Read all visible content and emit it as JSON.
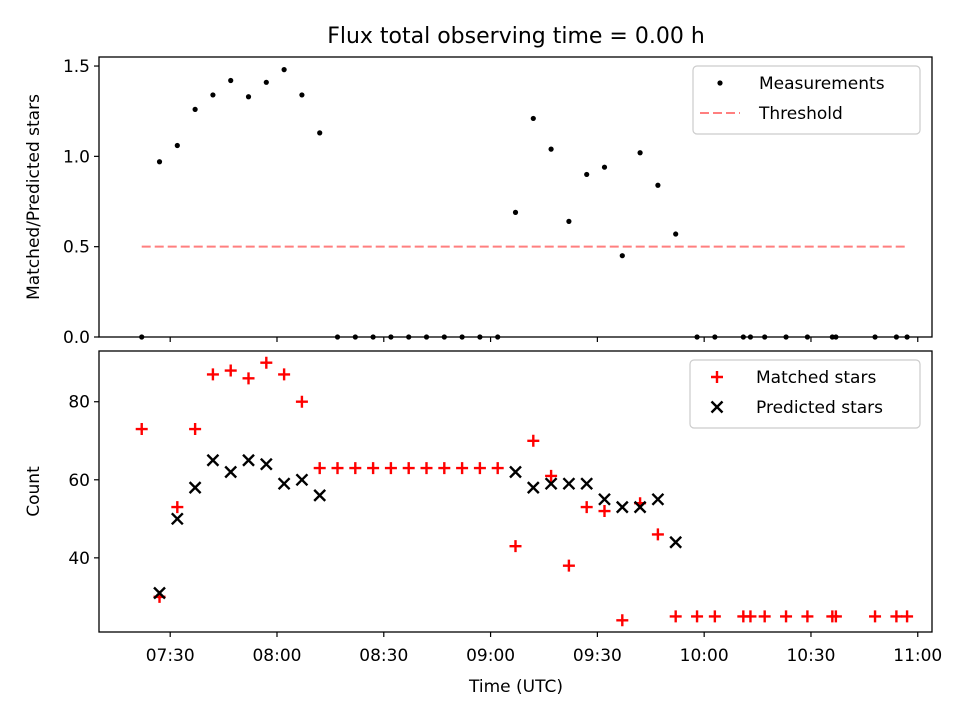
{
  "title": "Flux total observing time = 0.00 h",
  "xlabel": "Time (UTC)",
  "colors": {
    "measurement": "#000000",
    "threshold": "#ff7f7f",
    "matched": "#ff0000",
    "predicted": "#000000"
  },
  "chart_data": [
    {
      "type": "scatter",
      "ylabel": "Matched/Predicted stars",
      "xlim": [
        "07:10",
        "11:04"
      ],
      "ylim": [
        0,
        1.55
      ],
      "yticks": [
        0.0,
        0.5,
        1.0,
        1.5
      ],
      "ytick_labels": [
        "0.0",
        "0.5",
        "1.0",
        "1.5"
      ],
      "legend_position": "top-right",
      "series": [
        {
          "name": "Measurements",
          "marker": "dot",
          "x": [
            "07:22",
            "07:27",
            "07:32",
            "07:37",
            "07:42",
            "07:47",
            "07:52",
            "07:57",
            "08:02",
            "08:07",
            "08:12",
            "08:17",
            "08:22",
            "08:27",
            "08:32",
            "08:37",
            "08:42",
            "08:47",
            "08:52",
            "08:57",
            "09:02",
            "09:07",
            "09:12",
            "09:17",
            "09:22",
            "09:27",
            "09:32",
            "09:37",
            "09:42",
            "09:47",
            "09:52",
            "09:58",
            "10:03",
            "10:11",
            "10:13",
            "10:17",
            "10:23",
            "10:29",
            "10:36",
            "10:37",
            "10:48",
            "10:54",
            "10:57"
          ],
          "y": [
            0.0,
            0.97,
            1.06,
            1.26,
            1.34,
            1.42,
            1.33,
            1.41,
            1.48,
            1.34,
            1.13,
            0.0,
            0.0,
            0.0,
            0.0,
            0.0,
            0.0,
            0.0,
            0.0,
            0.0,
            0.0,
            0.69,
            1.21,
            1.04,
            0.64,
            0.9,
            0.94,
            0.45,
            1.02,
            0.84,
            0.57,
            0.0,
            0.0,
            0.0,
            0.0,
            0.0,
            0.0,
            0.0,
            0.0,
            0.0,
            0.0,
            0.0,
            0.0
          ]
        },
        {
          "name": "Threshold",
          "style": "dashed",
          "x": [
            "07:22",
            "10:57"
          ],
          "y": [
            0.5,
            0.5
          ]
        }
      ]
    },
    {
      "type": "scatter",
      "ylabel": "Count",
      "xlim": [
        "07:10",
        "11:04"
      ],
      "ylim": [
        21,
        93
      ],
      "yticks": [
        40,
        60,
        80
      ],
      "ytick_labels": [
        "40",
        "60",
        "80"
      ],
      "xtick_labels": [
        "07:30",
        "08:00",
        "08:30",
        "09:00",
        "09:30",
        "10:00",
        "10:30",
        "11:00"
      ],
      "legend_position": "top-right",
      "series": [
        {
          "name": "Matched stars",
          "marker": "plus",
          "x": [
            "07:22",
            "07:27",
            "07:32",
            "07:37",
            "07:42",
            "07:47",
            "07:52",
            "07:57",
            "08:02",
            "08:07",
            "08:12",
            "08:17",
            "08:22",
            "08:27",
            "08:32",
            "08:37",
            "08:42",
            "08:47",
            "08:52",
            "08:57",
            "09:02",
            "09:07",
            "09:12",
            "09:17",
            "09:22",
            "09:27",
            "09:32",
            "09:37",
            "09:42",
            "09:47",
            "09:52",
            "09:58",
            "10:03",
            "10:11",
            "10:13",
            "10:17",
            "10:23",
            "10:29",
            "10:36",
            "10:37",
            "10:48",
            "10:54",
            "10:57"
          ],
          "y": [
            73,
            30,
            53,
            73,
            87,
            88,
            86,
            90,
            87,
            80,
            63,
            63,
            63,
            63,
            63,
            63,
            63,
            63,
            63,
            63,
            63,
            43,
            70,
            61,
            38,
            53,
            52,
            24,
            54,
            46,
            25,
            25,
            25,
            25,
            25,
            25,
            25,
            25,
            25,
            25,
            25,
            25,
            25
          ]
        },
        {
          "name": "Predicted stars",
          "marker": "x",
          "x": [
            "07:27",
            "07:32",
            "07:37",
            "07:42",
            "07:47",
            "07:52",
            "07:57",
            "08:02",
            "08:07",
            "08:12",
            "09:07",
            "09:12",
            "09:17",
            "09:22",
            "09:27",
            "09:32",
            "09:37",
            "09:42",
            "09:47",
            "09:52"
          ],
          "y": [
            31,
            50,
            58,
            65,
            62,
            65,
            64,
            59,
            60,
            56,
            62,
            58,
            59,
            59,
            59,
            55,
            53,
            53,
            55,
            44
          ]
        }
      ]
    }
  ]
}
